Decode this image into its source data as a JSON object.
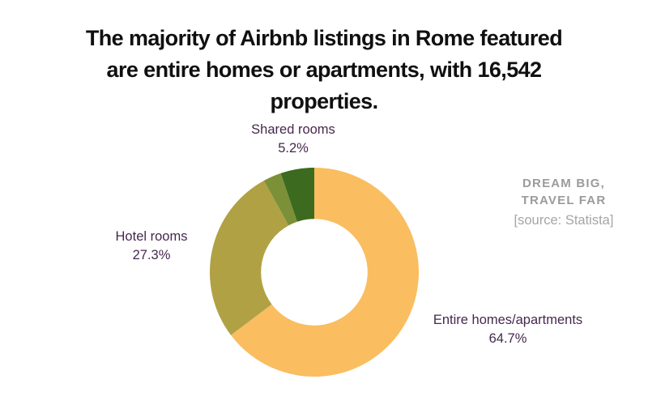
{
  "title_lines": [
    "The majority of Airbnb listings in Rome featured",
    "are entire homes or apartments, with 16,542",
    "properties."
  ],
  "chart_data": {
    "type": "pie",
    "subtype": "donut",
    "direction": "clockwise",
    "start_angle_deg": 0,
    "inner_radius_ratio": 0.51,
    "legend": "none",
    "segments": [
      {
        "label": "Entire homes/apartments",
        "value": 64.7,
        "color": "#FABD60"
      },
      {
        "label": "Hotel rooms",
        "value": 27.3,
        "color": "#B0A144"
      },
      {
        "label": "",
        "value": 2.8,
        "color": "#7C9038"
      },
      {
        "label": "Shared rooms",
        "value": 5.2,
        "color": "#3C6B20"
      }
    ]
  },
  "callouts": {
    "shared": {
      "name": "Shared rooms",
      "pct": "5.2%"
    },
    "hotel": {
      "name": "Hotel rooms",
      "pct": "27.3%"
    },
    "entire": {
      "name": "Entire homes/apartments",
      "pct": "64.7%"
    }
  },
  "branding": {
    "line1": "DREAM BIG,",
    "line2": "TRAVEL FAR",
    "source": "[source: Statista]"
  },
  "colors": {
    "title_text": "#101010",
    "label_text": "#46284E",
    "brand_text": "#9B9B9B",
    "source_text": "#A5A5A5",
    "background": "#FFFFFF"
  }
}
